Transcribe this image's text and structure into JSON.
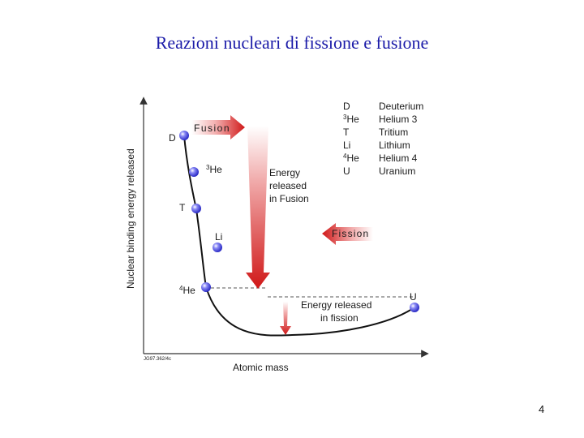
{
  "slide": {
    "title": "Reazioni nucleari di fissione e fusione",
    "page_number": "4"
  },
  "diagram": {
    "y_axis_label": "Nuclear binding energy released",
    "x_axis_label": "Atomic mass",
    "figure_code": "JG97.362/4c",
    "fusion_label": "Fusion",
    "fission_label": "Fission",
    "fusion_energy_label": [
      "Energy",
      "released",
      "in Fusion"
    ],
    "fission_energy_label": [
      "Energy released",
      "in fission"
    ],
    "points": [
      {
        "symbol": "D"
      },
      {
        "symbol": "He",
        "mass_number": "3"
      },
      {
        "symbol": "T"
      },
      {
        "symbol": "Li"
      },
      {
        "symbol": "He",
        "mass_number": "4"
      },
      {
        "symbol": "U"
      }
    ],
    "legend": [
      {
        "symbol": "D",
        "name": "Deuterium"
      },
      {
        "symbol": "He",
        "mass_number": "3",
        "name": "Helium 3"
      },
      {
        "symbol": "T",
        "name": "Tritium"
      },
      {
        "symbol": "Li",
        "name": "Lithium"
      },
      {
        "symbol": "He",
        "mass_number": "4",
        "name": "Helium 4"
      },
      {
        "symbol": "U",
        "name": "Uranium"
      }
    ],
    "colors": {
      "arrow_red": "#d01818",
      "point_blue": "#3a3ae0",
      "title_blue": "#1a1aa8"
    }
  }
}
